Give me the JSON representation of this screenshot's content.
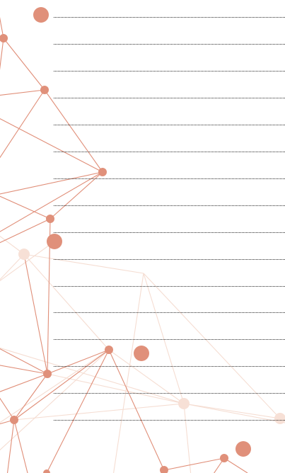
{
  "page": {
    "background_color": "#ffffff",
    "line_color": "#2a2a2a",
    "line_style": "dotted",
    "ruled_line_count": 16
  },
  "decoration": {
    "accent_color": "#e0907a",
    "pale_color": "#f7e0d6",
    "edge_color": "#e08e78",
    "pale_edge_color": "#f5ddd2"
  }
}
